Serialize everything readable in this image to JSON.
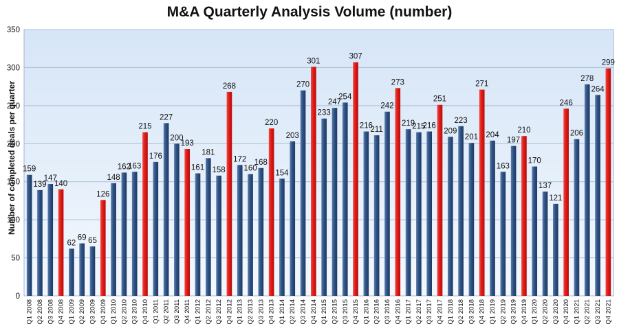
{
  "chart_data": {
    "type": "bar",
    "title": "M&A Quarterly Analysis Volume (number)",
    "xlabel": "",
    "ylabel": "Number of completed deals per quarter",
    "ylim": [
      0,
      350
    ],
    "yticks": [
      0,
      50,
      100,
      150,
      200,
      250,
      300,
      350
    ],
    "grid": true,
    "legend": "none",
    "colors": {
      "regular": "#2F5283",
      "q4": "#E11A16",
      "plot_bg_top": "#D6E5F7",
      "plot_bg_bottom": "#F3F8FD"
    },
    "categories": [
      "Q1 2008",
      "Q2 2008",
      "Q3 2008",
      "Q4 2008",
      "Q1 2009",
      "Q2 2009",
      "Q3 2009",
      "Q4 2009",
      "Q1 2010",
      "Q2 2010",
      "Q3 2010",
      "Q4 2010",
      "Q1 2011",
      "Q2 2011",
      "Q3 2011",
      "Q4 2011",
      "Q1 2012",
      "Q2 2012",
      "Q3 2012",
      "Q4 2012",
      "Q1 2013",
      "Q2 2013",
      "Q3 2013",
      "Q4 2013",
      "Q1 2014",
      "Q2 2014",
      "Q3 2014",
      "Q4 2014",
      "Q1 2015",
      "Q2 2015",
      "Q3 2015",
      "Q4 2015",
      "Q1 2016",
      "Q2 2016",
      "Q3 2016",
      "Q4 2016",
      "Q1 2017",
      "Q2 2017",
      "Q3 2017",
      "Q4 2017",
      "Q1 2018",
      "Q2 2018",
      "Q3 2018",
      "Q4 2018",
      "Q1 2019",
      "Q2 2019",
      "Q3 2019",
      "Q4 2019",
      "Q1 2020",
      "Q2 2020",
      "Q3 2020",
      "Q4 2020",
      "Q1 2021",
      "Q2 2021",
      "Q3 2021",
      "Q4 2021"
    ],
    "values": [
      159,
      139,
      147,
      140,
      62,
      69,
      65,
      126,
      148,
      162,
      163,
      215,
      176,
      227,
      200,
      193,
      161,
      181,
      158,
      268,
      172,
      160,
      168,
      220,
      154,
      203,
      270,
      301,
      233,
      247,
      254,
      307,
      216,
      211,
      242,
      273,
      219,
      215,
      216,
      251,
      209,
      223,
      201,
      271,
      204,
      163,
      197,
      210,
      170,
      137,
      121,
      246,
      206,
      278,
      264,
      299
    ],
    "highlight": [
      "regular",
      "regular",
      "regular",
      "q4",
      "regular",
      "regular",
      "regular",
      "q4",
      "regular",
      "regular",
      "regular",
      "q4",
      "regular",
      "regular",
      "regular",
      "q4",
      "regular",
      "regular",
      "regular",
      "q4",
      "regular",
      "regular",
      "regular",
      "q4",
      "regular",
      "regular",
      "regular",
      "q4",
      "regular",
      "regular",
      "regular",
      "q4",
      "regular",
      "regular",
      "regular",
      "q4",
      "regular",
      "regular",
      "regular",
      "q4",
      "regular",
      "regular",
      "regular",
      "q4",
      "regular",
      "regular",
      "regular",
      "q4",
      "regular",
      "regular",
      "regular",
      "q4",
      "regular",
      "regular",
      "regular",
      "q4"
    ]
  }
}
